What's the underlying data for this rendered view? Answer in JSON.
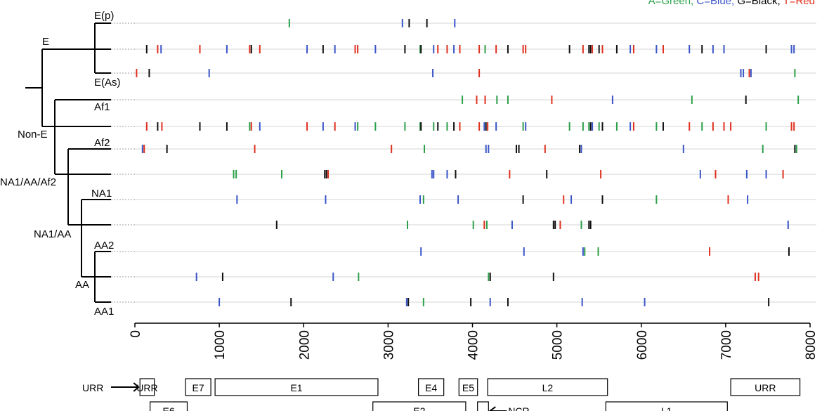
{
  "legend": {
    "segments": [
      {
        "text": "A=Green,",
        "color": "#2ca04a"
      },
      {
        "text": "C=Blue,",
        "color": "#3a55c8"
      },
      {
        "text": "G=Black,",
        "color": "#000000"
      },
      {
        "text": "T=Red",
        "color": "#e0301e"
      }
    ]
  },
  "colors": {
    "A": "#2ca04a",
    "C": "#3a55c8",
    "G": "#111111",
    "T": "#e0301e"
  },
  "axis": {
    "min": 0,
    "max": 8000,
    "ticks": [
      "0",
      "1000",
      "2000",
      "3000",
      "4000",
      "5000",
      "6000",
      "7000",
      "8000"
    ]
  },
  "tree_labels": {
    "E_p": "E(p)",
    "E": "E",
    "E_As": "E(As)",
    "Af1": "Af1",
    "Non_E": "Non-E",
    "Af2": "Af2",
    "NA1_AA_Af2": "NA1/AA/Af2",
    "NA1": "NA1",
    "NA1_AA": "NA1/AA",
    "AA2": "AA2",
    "AA": "AA",
    "AA1": "AA1"
  },
  "tracks": [
    {
      "name": "E(p)",
      "marks": [
        [
          1830,
          "A"
        ],
        [
          3170,
          "C"
        ],
        [
          3250,
          "G"
        ],
        [
          3460,
          "G"
        ],
        [
          3790,
          "C"
        ]
      ]
    },
    {
      "name": "E",
      "marks": [
        [
          140,
          "G"
        ],
        [
          270,
          "T"
        ],
        [
          310,
          "C"
        ],
        [
          770,
          "T"
        ],
        [
          1090,
          "C"
        ],
        [
          1360,
          "T"
        ],
        [
          1380,
          "G"
        ],
        [
          1480,
          "T"
        ],
        [
          2040,
          "C"
        ],
        [
          2230,
          "G"
        ],
        [
          2370,
          "C"
        ],
        [
          2610,
          "T"
        ],
        [
          2640,
          "T"
        ],
        [
          2850,
          "C"
        ],
        [
          3200,
          "G"
        ],
        [
          3380,
          "A"
        ],
        [
          3390,
          "G"
        ],
        [
          3540,
          "C"
        ],
        [
          3590,
          "T"
        ],
        [
          3700,
          "T"
        ],
        [
          3780,
          "C"
        ],
        [
          3850,
          "T"
        ],
        [
          4080,
          "T"
        ],
        [
          4150,
          "A"
        ],
        [
          4280,
          "T"
        ],
        [
          4420,
          "G"
        ],
        [
          4600,
          "T"
        ],
        [
          4630,
          "T"
        ],
        [
          5150,
          "G"
        ],
        [
          5310,
          "T"
        ],
        [
          5380,
          "G"
        ],
        [
          5400,
          "G"
        ],
        [
          5420,
          "T"
        ],
        [
          5500,
          "G"
        ],
        [
          5540,
          "T"
        ],
        [
          5710,
          "G"
        ],
        [
          5870,
          "C"
        ],
        [
          5910,
          "T"
        ],
        [
          6180,
          "C"
        ],
        [
          6260,
          "T"
        ],
        [
          6570,
          "C"
        ],
        [
          6720,
          "G"
        ],
        [
          6850,
          "C"
        ],
        [
          6980,
          "C"
        ],
        [
          7480,
          "G"
        ],
        [
          7780,
          "C"
        ],
        [
          7810,
          "C"
        ]
      ]
    },
    {
      "name": "E(As)",
      "marks": [
        [
          20,
          "T"
        ],
        [
          170,
          "G"
        ],
        [
          880,
          "C"
        ],
        [
          3530,
          "C"
        ],
        [
          4080,
          "T"
        ],
        [
          7180,
          "C"
        ],
        [
          7210,
          "C"
        ],
        [
          7280,
          "T"
        ],
        [
          7300,
          "C"
        ],
        [
          7820,
          "A"
        ]
      ]
    },
    {
      "name": "Af1",
      "marks": [
        [
          3880,
          "A"
        ],
        [
          4050,
          "T"
        ],
        [
          4150,
          "T"
        ],
        [
          4290,
          "A"
        ],
        [
          4420,
          "A"
        ],
        [
          4940,
          "T"
        ],
        [
          5660,
          "C"
        ],
        [
          6600,
          "A"
        ],
        [
          7240,
          "G"
        ],
        [
          7860,
          "A"
        ]
      ]
    },
    {
      "name": "Non-E",
      "marks": [
        [
          140,
          "T"
        ],
        [
          270,
          "G"
        ],
        [
          320,
          "T"
        ],
        [
          770,
          "G"
        ],
        [
          1090,
          "G"
        ],
        [
          1360,
          "A"
        ],
        [
          1380,
          "T"
        ],
        [
          1480,
          "C"
        ],
        [
          2040,
          "T"
        ],
        [
          2230,
          "C"
        ],
        [
          2370,
          "T"
        ],
        [
          2610,
          "C"
        ],
        [
          2640,
          "A"
        ],
        [
          2850,
          "A"
        ],
        [
          3200,
          "A"
        ],
        [
          3380,
          "A"
        ],
        [
          3390,
          "G"
        ],
        [
          3540,
          "A"
        ],
        [
          3590,
          "G"
        ],
        [
          3700,
          "A"
        ],
        [
          3780,
          "G"
        ],
        [
          3850,
          "T"
        ],
        [
          4080,
          "T"
        ],
        [
          4140,
          "C"
        ],
        [
          4160,
          "G"
        ],
        [
          4180,
          "T"
        ],
        [
          4280,
          "C"
        ],
        [
          4600,
          "A"
        ],
        [
          4630,
          "C"
        ],
        [
          5150,
          "A"
        ],
        [
          5310,
          "A"
        ],
        [
          5380,
          "A"
        ],
        [
          5400,
          "G"
        ],
        [
          5420,
          "C"
        ],
        [
          5500,
          "A"
        ],
        [
          5540,
          "G"
        ],
        [
          5710,
          "A"
        ],
        [
          5870,
          "C"
        ],
        [
          5910,
          "T"
        ],
        [
          6180,
          "A"
        ],
        [
          6260,
          "G"
        ],
        [
          6570,
          "T"
        ],
        [
          6720,
          "A"
        ],
        [
          6850,
          "T"
        ],
        [
          6980,
          "T"
        ],
        [
          7060,
          "T"
        ],
        [
          7480,
          "A"
        ],
        [
          7780,
          "T"
        ],
        [
          7810,
          "T"
        ]
      ]
    },
    {
      "name": "Af2",
      "marks": [
        [
          90,
          "C"
        ],
        [
          110,
          "T"
        ],
        [
          380,
          "G"
        ],
        [
          1420,
          "T"
        ],
        [
          3040,
          "T"
        ],
        [
          3430,
          "A"
        ],
        [
          4160,
          "C"
        ],
        [
          4190,
          "C"
        ],
        [
          4520,
          "G"
        ],
        [
          4550,
          "G"
        ],
        [
          4860,
          "T"
        ],
        [
          5270,
          "G"
        ],
        [
          5290,
          "C"
        ],
        [
          6500,
          "C"
        ],
        [
          7440,
          "A"
        ],
        [
          7820,
          "G"
        ],
        [
          7840,
          "A"
        ]
      ]
    },
    {
      "name": "NA1/AA/Af2",
      "marks": [
        [
          1170,
          "A"
        ],
        [
          1200,
          "A"
        ],
        [
          1740,
          "A"
        ],
        [
          2250,
          "G"
        ],
        [
          2270,
          "G"
        ],
        [
          2290,
          "T"
        ],
        [
          3520,
          "C"
        ],
        [
          3540,
          "C"
        ],
        [
          3700,
          "C"
        ],
        [
          3800,
          "G"
        ],
        [
          4440,
          "T"
        ],
        [
          4880,
          "G"
        ],
        [
          5520,
          "T"
        ],
        [
          6700,
          "C"
        ],
        [
          6880,
          "T"
        ],
        [
          7250,
          "C"
        ],
        [
          7480,
          "C"
        ],
        [
          7680,
          "T"
        ]
      ]
    },
    {
      "name": "NA1",
      "marks": [
        [
          1210,
          "C"
        ],
        [
          2260,
          "C"
        ],
        [
          3380,
          "C"
        ],
        [
          3420,
          "A"
        ],
        [
          3830,
          "C"
        ],
        [
          4600,
          "G"
        ],
        [
          5080,
          "T"
        ],
        [
          5170,
          "C"
        ],
        [
          5540,
          "G"
        ],
        [
          6180,
          "A"
        ],
        [
          7030,
          "T"
        ],
        [
          7260,
          "C"
        ]
      ]
    },
    {
      "name": "NA1/AA",
      "marks": [
        [
          1680,
          "G"
        ],
        [
          3230,
          "A"
        ],
        [
          4010,
          "A"
        ],
        [
          4140,
          "T"
        ],
        [
          4170,
          "A"
        ],
        [
          4470,
          "C"
        ],
        [
          4960,
          "G"
        ],
        [
          4980,
          "G"
        ],
        [
          5040,
          "T"
        ],
        [
          5290,
          "A"
        ],
        [
          5380,
          "G"
        ],
        [
          5400,
          "G"
        ],
        [
          7740,
          "C"
        ]
      ]
    },
    {
      "name": "AA2",
      "marks": [
        [
          3390,
          "C"
        ],
        [
          4610,
          "C"
        ],
        [
          5310,
          "C"
        ],
        [
          5330,
          "A"
        ],
        [
          5490,
          "A"
        ],
        [
          6810,
          "T"
        ],
        [
          7750,
          "G"
        ]
      ]
    },
    {
      "name": "AA",
      "marks": [
        [
          730,
          "C"
        ],
        [
          1040,
          "G"
        ],
        [
          2350,
          "C"
        ],
        [
          2650,
          "A"
        ],
        [
          4190,
          "A"
        ],
        [
          4210,
          "G"
        ],
        [
          4960,
          "G"
        ],
        [
          7350,
          "T"
        ],
        [
          7390,
          "T"
        ]
      ]
    },
    {
      "name": "AA1",
      "marks": [
        [
          1000,
          "C"
        ],
        [
          1850,
          "G"
        ],
        [
          3220,
          "C"
        ],
        [
          3240,
          "G"
        ],
        [
          3420,
          "A"
        ],
        [
          3980,
          "G"
        ],
        [
          4210,
          "C"
        ],
        [
          4420,
          "G"
        ],
        [
          5300,
          "C"
        ],
        [
          6040,
          "C"
        ],
        [
          7510,
          "G"
        ]
      ]
    }
  ],
  "genes": {
    "row1": [
      {
        "label": "URR",
        "start": 60,
        "end": 230,
        "arrow_label": "URR"
      },
      {
        "label": "E7",
        "start": 600,
        "end": 900
      },
      {
        "label": "E1",
        "start": 950,
        "end": 2880
      },
      {
        "label": "E4",
        "start": 3360,
        "end": 3660
      },
      {
        "label": "E5",
        "start": 3840,
        "end": 4060
      },
      {
        "label": "L2",
        "start": 4180,
        "end": 5600
      },
      {
        "label": "URR",
        "start": 7060,
        "end": 7880
      }
    ],
    "row2": [
      {
        "label": "E6",
        "start": 180,
        "end": 620
      },
      {
        "label": "E2",
        "start": 2820,
        "end": 3920
      },
      {
        "label": "",
        "start": 4060,
        "end": 4190,
        "arrow_label": "NCR"
      },
      {
        "label": "L1",
        "start": 5580,
        "end": 7020
      }
    ]
  }
}
